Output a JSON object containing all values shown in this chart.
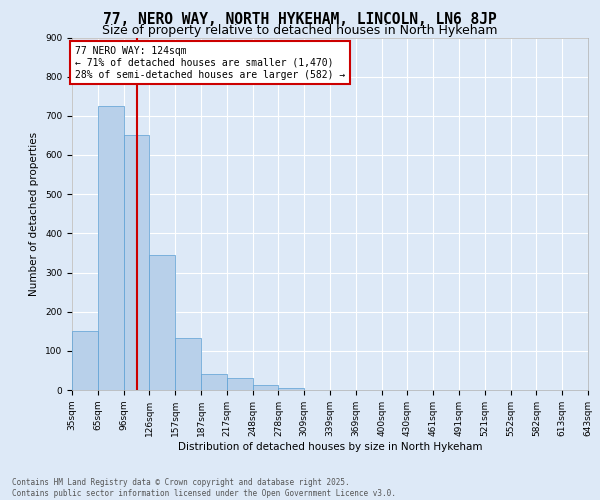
{
  "title": "77, NERO WAY, NORTH HYKEHAM, LINCOLN, LN6 8JP",
  "subtitle": "Size of property relative to detached houses in North Hykeham",
  "xlabel": "Distribution of detached houses by size in North Hykeham",
  "ylabel": "Number of detached properties",
  "bar_values": [
    150,
    725,
    650,
    345,
    132,
    42,
    30,
    12,
    5,
    0,
    0,
    0,
    0,
    0,
    0,
    0,
    0,
    0,
    0,
    0
  ],
  "categories": [
    "35sqm",
    "65sqm",
    "96sqm",
    "126sqm",
    "157sqm",
    "187sqm",
    "217sqm",
    "248sqm",
    "278sqm",
    "309sqm",
    "339sqm",
    "369sqm",
    "400sqm",
    "430sqm",
    "461sqm",
    "491sqm",
    "521sqm",
    "552sqm",
    "582sqm",
    "613sqm",
    "643sqm"
  ],
  "bar_color": "#b8d0ea",
  "bar_edge_color": "#5a9fd4",
  "vline_x": 2.5,
  "vline_color": "#cc0000",
  "annotation_title": "77 NERO WAY: 124sqm",
  "annotation_line1": "← 71% of detached houses are smaller (1,470)",
  "annotation_line2": "28% of semi-detached houses are larger (582) →",
  "annotation_box_color": "#cc0000",
  "background_color": "#dde9f7",
  "plot_bg_color": "#dde9f7",
  "grid_color": "#ffffff",
  "ylim": [
    0,
    900
  ],
  "yticks": [
    0,
    100,
    200,
    300,
    400,
    500,
    600,
    700,
    800,
    900
  ],
  "footer_line1": "Contains HM Land Registry data © Crown copyright and database right 2025.",
  "footer_line2": "Contains public sector information licensed under the Open Government Licence v3.0.",
  "title_fontsize": 10.5,
  "subtitle_fontsize": 9,
  "axis_label_fontsize": 7.5,
  "tick_fontsize": 6.5,
  "annotation_fontsize": 7,
  "footer_fontsize": 5.5
}
